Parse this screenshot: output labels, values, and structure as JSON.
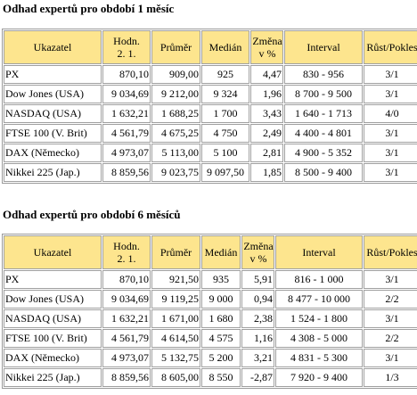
{
  "sections": [
    {
      "title": "Odhad expertů pro období 1 měsíc",
      "headers": {
        "indicator": "Ukazatel",
        "value": "Hodn. 2. 1.",
        "average": "Průměr",
        "median": "Medián",
        "change": "Změna v %",
        "interval": "Interval",
        "growth_decline": "Růst/Pokles"
      },
      "rows": [
        {
          "indicator": "PX",
          "value": "870,10",
          "average": "909,00",
          "median": "925",
          "change": "4,47",
          "interval": "830 - 956",
          "growth_decline": "3/1"
        },
        {
          "indicator": "Dow Jones (USA)",
          "value": "9 034,69",
          "average": "9 212,00",
          "median": "9 324",
          "change": "1,96",
          "interval": "8 700 - 9 500",
          "growth_decline": "3/1"
        },
        {
          "indicator": "NASDAQ (USA)",
          "value": "1 632,21",
          "average": "1 688,25",
          "median": "1 700",
          "change": "3,43",
          "interval": "1 640 - 1 713",
          "growth_decline": "4/0"
        },
        {
          "indicator": "FTSE 100 (V. Brit)",
          "value": "4 561,79",
          "average": "4 675,25",
          "median": "4 750",
          "change": "2,49",
          "interval": "4 400 - 4 801",
          "growth_decline": "3/1"
        },
        {
          "indicator": "DAX (Německo)",
          "value": "4 973,07",
          "average": "5 113,00",
          "median": "5 100",
          "change": "2,81",
          "interval": "4 900 - 5 352",
          "growth_decline": "3/1"
        },
        {
          "indicator": "Nikkei 225 (Jap.)",
          "value": "8 859,56",
          "average": "9 023,75",
          "median": "9 097,50",
          "change": "1,85",
          "interval": "8 500 - 9 400",
          "growth_decline": "3/1"
        }
      ]
    },
    {
      "title": "Odhad expertů pro období 6 měsíců",
      "headers": {
        "indicator": "Ukazatel",
        "value": "Hodn. 2. 1.",
        "average": "Průměr",
        "median": "Medián",
        "change": "Změna v %",
        "interval": "Interval",
        "growth_decline": "Růst/Pokles"
      },
      "rows": [
        {
          "indicator": "PX",
          "value": "870,10",
          "average": "921,50",
          "median": "935",
          "change": "5,91",
          "interval": "816 - 1 000",
          "growth_decline": "3/1"
        },
        {
          "indicator": "Dow Jones (USA)",
          "value": "9 034,69",
          "average": "9 119,25",
          "median": "9 000",
          "change": "0,94",
          "interval": "8 477 - 10 000",
          "growth_decline": "2/2"
        },
        {
          "indicator": "NASDAQ (USA)",
          "value": "1 632,21",
          "average": "1 671,00",
          "median": "1 680",
          "change": "2,38",
          "interval": "1 524 - 1 800",
          "growth_decline": "3/1"
        },
        {
          "indicator": "FTSE 100 (V. Brit)",
          "value": "4 561,79",
          "average": "4 614,50",
          "median": "4 575",
          "change": "1,16",
          "interval": "4 308 - 5 000",
          "growth_decline": "2/2"
        },
        {
          "indicator": "DAX (Německo)",
          "value": "4 973,07",
          "average": "5 132,75",
          "median": "5 200",
          "change": "3,21",
          "interval": "4 831 - 5 300",
          "growth_decline": "3/1"
        },
        {
          "indicator": "Nikkei 225 (Jap.)",
          "value": "8 859,56",
          "average": "8 605,00",
          "median": "8 550",
          "change": "-2,87",
          "interval": "7 920 - 9 400",
          "growth_decline": "1/3"
        }
      ]
    }
  ]
}
